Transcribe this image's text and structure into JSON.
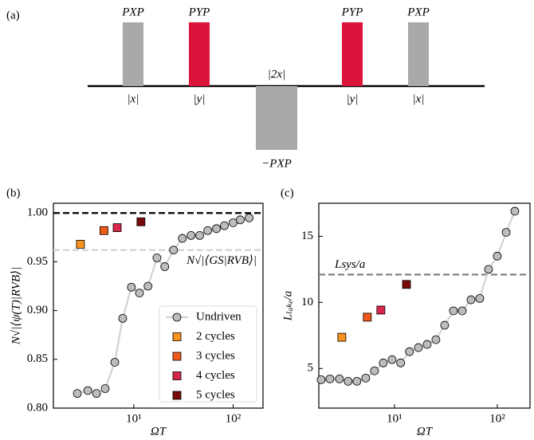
{
  "chart_data": [
    {
      "type": "pulse",
      "panel_label": "(a)",
      "pulses": [
        {
          "label": "PXP",
          "duration_label": "|x|",
          "color": "#a9a9a9",
          "label_color": "#b3b3b3",
          "value": 1,
          "duration": 1
        },
        {
          "label": "PYP",
          "duration_label": "|y|",
          "color": "#dc143c",
          "label_color": "#dc143c",
          "value": 1,
          "duration": 1
        },
        {
          "label": "−PXP",
          "duration_label": "|2x|",
          "color": "#a9a9a9",
          "label_color": "#b3b3b3",
          "value": -1,
          "duration": 2
        },
        {
          "label": "PYP",
          "duration_label": "|y|",
          "color": "#dc143c",
          "label_color": "#dc143c",
          "value": 1,
          "duration": 1
        },
        {
          "label": "PXP",
          "duration_label": "|x|",
          "color": "#a9a9a9",
          "label_color": "#b3b3b3",
          "value": 1,
          "duration": 1
        }
      ]
    },
    {
      "type": "scatter",
      "panel_label": "(b)",
      "xlabel": "ΩT",
      "ylabel": "N√|⟨ψ(T)|RVB⟩|",
      "xscale": "log",
      "xlim": [
        1.55,
        200
      ],
      "xticks": [
        {
          "value": 10,
          "label": "10¹"
        },
        {
          "value": 100,
          "label": "10²"
        }
      ],
      "ylim": [
        0.8,
        1.01
      ],
      "yticks": [
        {
          "value": 0.8,
          "label": "0.80"
        },
        0.85,
        {
          "value": 0.9,
          "label": "0.90"
        },
        0.95,
        {
          "value": 1.0,
          "label": "1.00"
        }
      ],
      "hlines": [
        {
          "value": 1.0,
          "color": "#000000"
        },
        {
          "value": 0.962,
          "color": "#d3d3d3",
          "label": "N√|⟨GS|RVB⟩|"
        }
      ],
      "legend": "lower right",
      "series": [
        {
          "name": "Undriven",
          "marker": "circle",
          "color": "#bdbdbd",
          "line_color": "#d3d3d3",
          "x": [
            2.7,
            3.44,
            4.21,
            5.15,
            6.43,
            7.73,
            9.46,
            11.4,
            13.9,
            17.1,
            20.5,
            25.1,
            30.8,
            37.7,
            46.1,
            55.5,
            67.9,
            81.7,
            100,
            118,
            145
          ],
          "values": [
            0.815,
            0.818,
            0.815,
            0.82,
            0.847,
            0.892,
            0.924,
            0.918,
            0.925,
            0.954,
            0.945,
            0.962,
            0.974,
            0.977,
            0.977,
            0.982,
            0.984,
            0.987,
            0.99,
            0.993,
            0.995
          ]
        },
        {
          "name": "2 cycles",
          "marker": "square",
          "color": "#f7931e",
          "x": [
            2.9
          ],
          "values": [
            0.968
          ]
        },
        {
          "name": "3 cycles",
          "marker": "square",
          "color": "#f05a1a",
          "x": [
            5.0
          ],
          "values": [
            0.982
          ]
        },
        {
          "name": "4 cycles",
          "marker": "square",
          "color": "#d6264c",
          "x": [
            6.8
          ],
          "values": [
            0.985
          ]
        },
        {
          "name": "5 cycles",
          "marker": "square",
          "color": "#7a0a0a",
          "x": [
            11.8
          ],
          "values": [
            0.991
          ]
        }
      ]
    },
    {
      "type": "scatter",
      "panel_label": "(c)",
      "xlabel": "ΩT",
      "ylabel": "Lₗₐₖₑ/a",
      "xscale": "log",
      "xlim": [
        1.84,
        208
      ],
      "xticks": [
        {
          "value": 10,
          "label": "10¹"
        },
        {
          "value": 100,
          "label": "10²"
        }
      ],
      "ylim": [
        2,
        17.5
      ],
      "yticks": [
        5,
        10,
        15
      ],
      "hlines": [
        {
          "value": 12.1,
          "color": "#808080",
          "label": "Lsys/a"
        }
      ],
      "series": [
        {
          "name": "Undriven",
          "marker": "circle",
          "color": "#bdbdbd",
          "line_color": "#d3d3d3",
          "x": [
            1.94,
            2.36,
            2.92,
            3.55,
            4.32,
            5.26,
            6.4,
            7.79,
            9.48,
            11.5,
            14.0,
            17.1,
            20.8,
            25.3,
            30.8,
            37.5,
            45.6,
            55.5,
            67.5,
            82.2,
            100,
            122,
            148
          ],
          "values": [
            4.15,
            4.21,
            4.21,
            4.03,
            4.03,
            4.27,
            4.82,
            5.42,
            5.67,
            5.42,
            6.27,
            6.58,
            6.82,
            7.18,
            8.27,
            9.36,
            9.36,
            10.2,
            10.3,
            12.5,
            13.5,
            15.3,
            16.9
          ]
        },
        {
          "name": "2 cycles",
          "marker": "square",
          "color": "#f7931e",
          "x": [
            3.08
          ],
          "values": [
            7.36
          ]
        },
        {
          "name": "3 cycles",
          "marker": "square",
          "color": "#f05a1a",
          "x": [
            5.45
          ],
          "values": [
            8.88
          ]
        },
        {
          "name": "4 cycles",
          "marker": "square",
          "color": "#d6264c",
          "x": [
            7.38
          ],
          "values": [
            9.42
          ]
        },
        {
          "name": "5 cycles",
          "marker": "square",
          "color": "#7a0a0a",
          "x": [
            13.1
          ],
          "values": [
            11.36
          ]
        }
      ]
    }
  ]
}
